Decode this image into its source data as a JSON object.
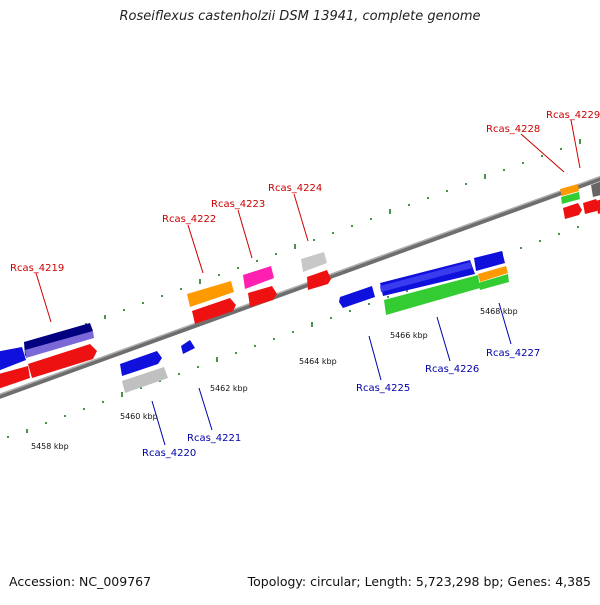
{
  "title": "Roseiflexus castenholzii DSM 13941, complete genome",
  "footer": {
    "accession": "Accession: NC_009767",
    "info": "Topology: circular; Length: 5,723,298 bp; Genes: 4,385"
  },
  "scale_labels": [
    "5458 kbp",
    "5460 kbp",
    "5462 kbp",
    "5464 kbp",
    "5466 kbp",
    "5468 kbp"
  ],
  "gene_labels": {
    "top": [
      "Rcas_4219",
      "Rcas_4222",
      "Rcas_4223",
      "Rcas_4224",
      "Rcas_4228",
      "Rcas_4229"
    ],
    "bottom": [
      "Rcas_4220",
      "Rcas_4221",
      "Rcas_4225",
      "Rcas_4226",
      "Rcas_4227"
    ]
  },
  "colors": {
    "forward_label": "#cc0000",
    "reverse_label": "#0000aa",
    "backbone": "#7a7a7a",
    "tick": "#1a7a1a"
  }
}
